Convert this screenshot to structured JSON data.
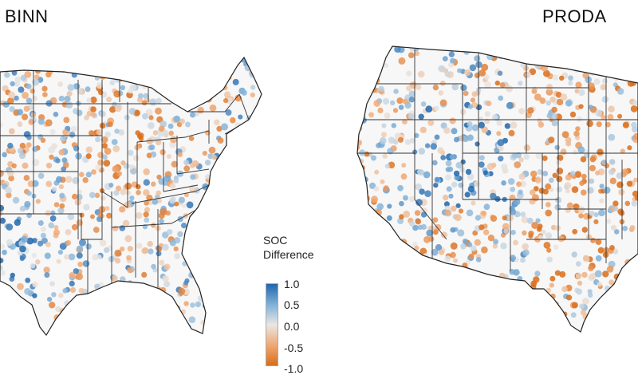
{
  "panels": [
    {
      "title": "BINN"
    },
    {
      "title": "PRODA"
    }
  ],
  "legend": {
    "title_line1": "SOC",
    "title_line2": "Difference",
    "ticks": [
      "1.0",
      "0.5",
      "0.0",
      "-0.5",
      "-1.0"
    ],
    "range": [
      -1.0,
      1.0
    ],
    "colors": {
      "pos_max": "#2166ac",
      "pos_mid": "#7fb0d8",
      "zero": "#e9e6e4",
      "neg_mid": "#f0a873",
      "neg_max": "#d96d1a"
    }
  },
  "map_colors": {
    "background": "#ffffff",
    "land": "#f7f7f7",
    "borders": "#222222"
  }
}
